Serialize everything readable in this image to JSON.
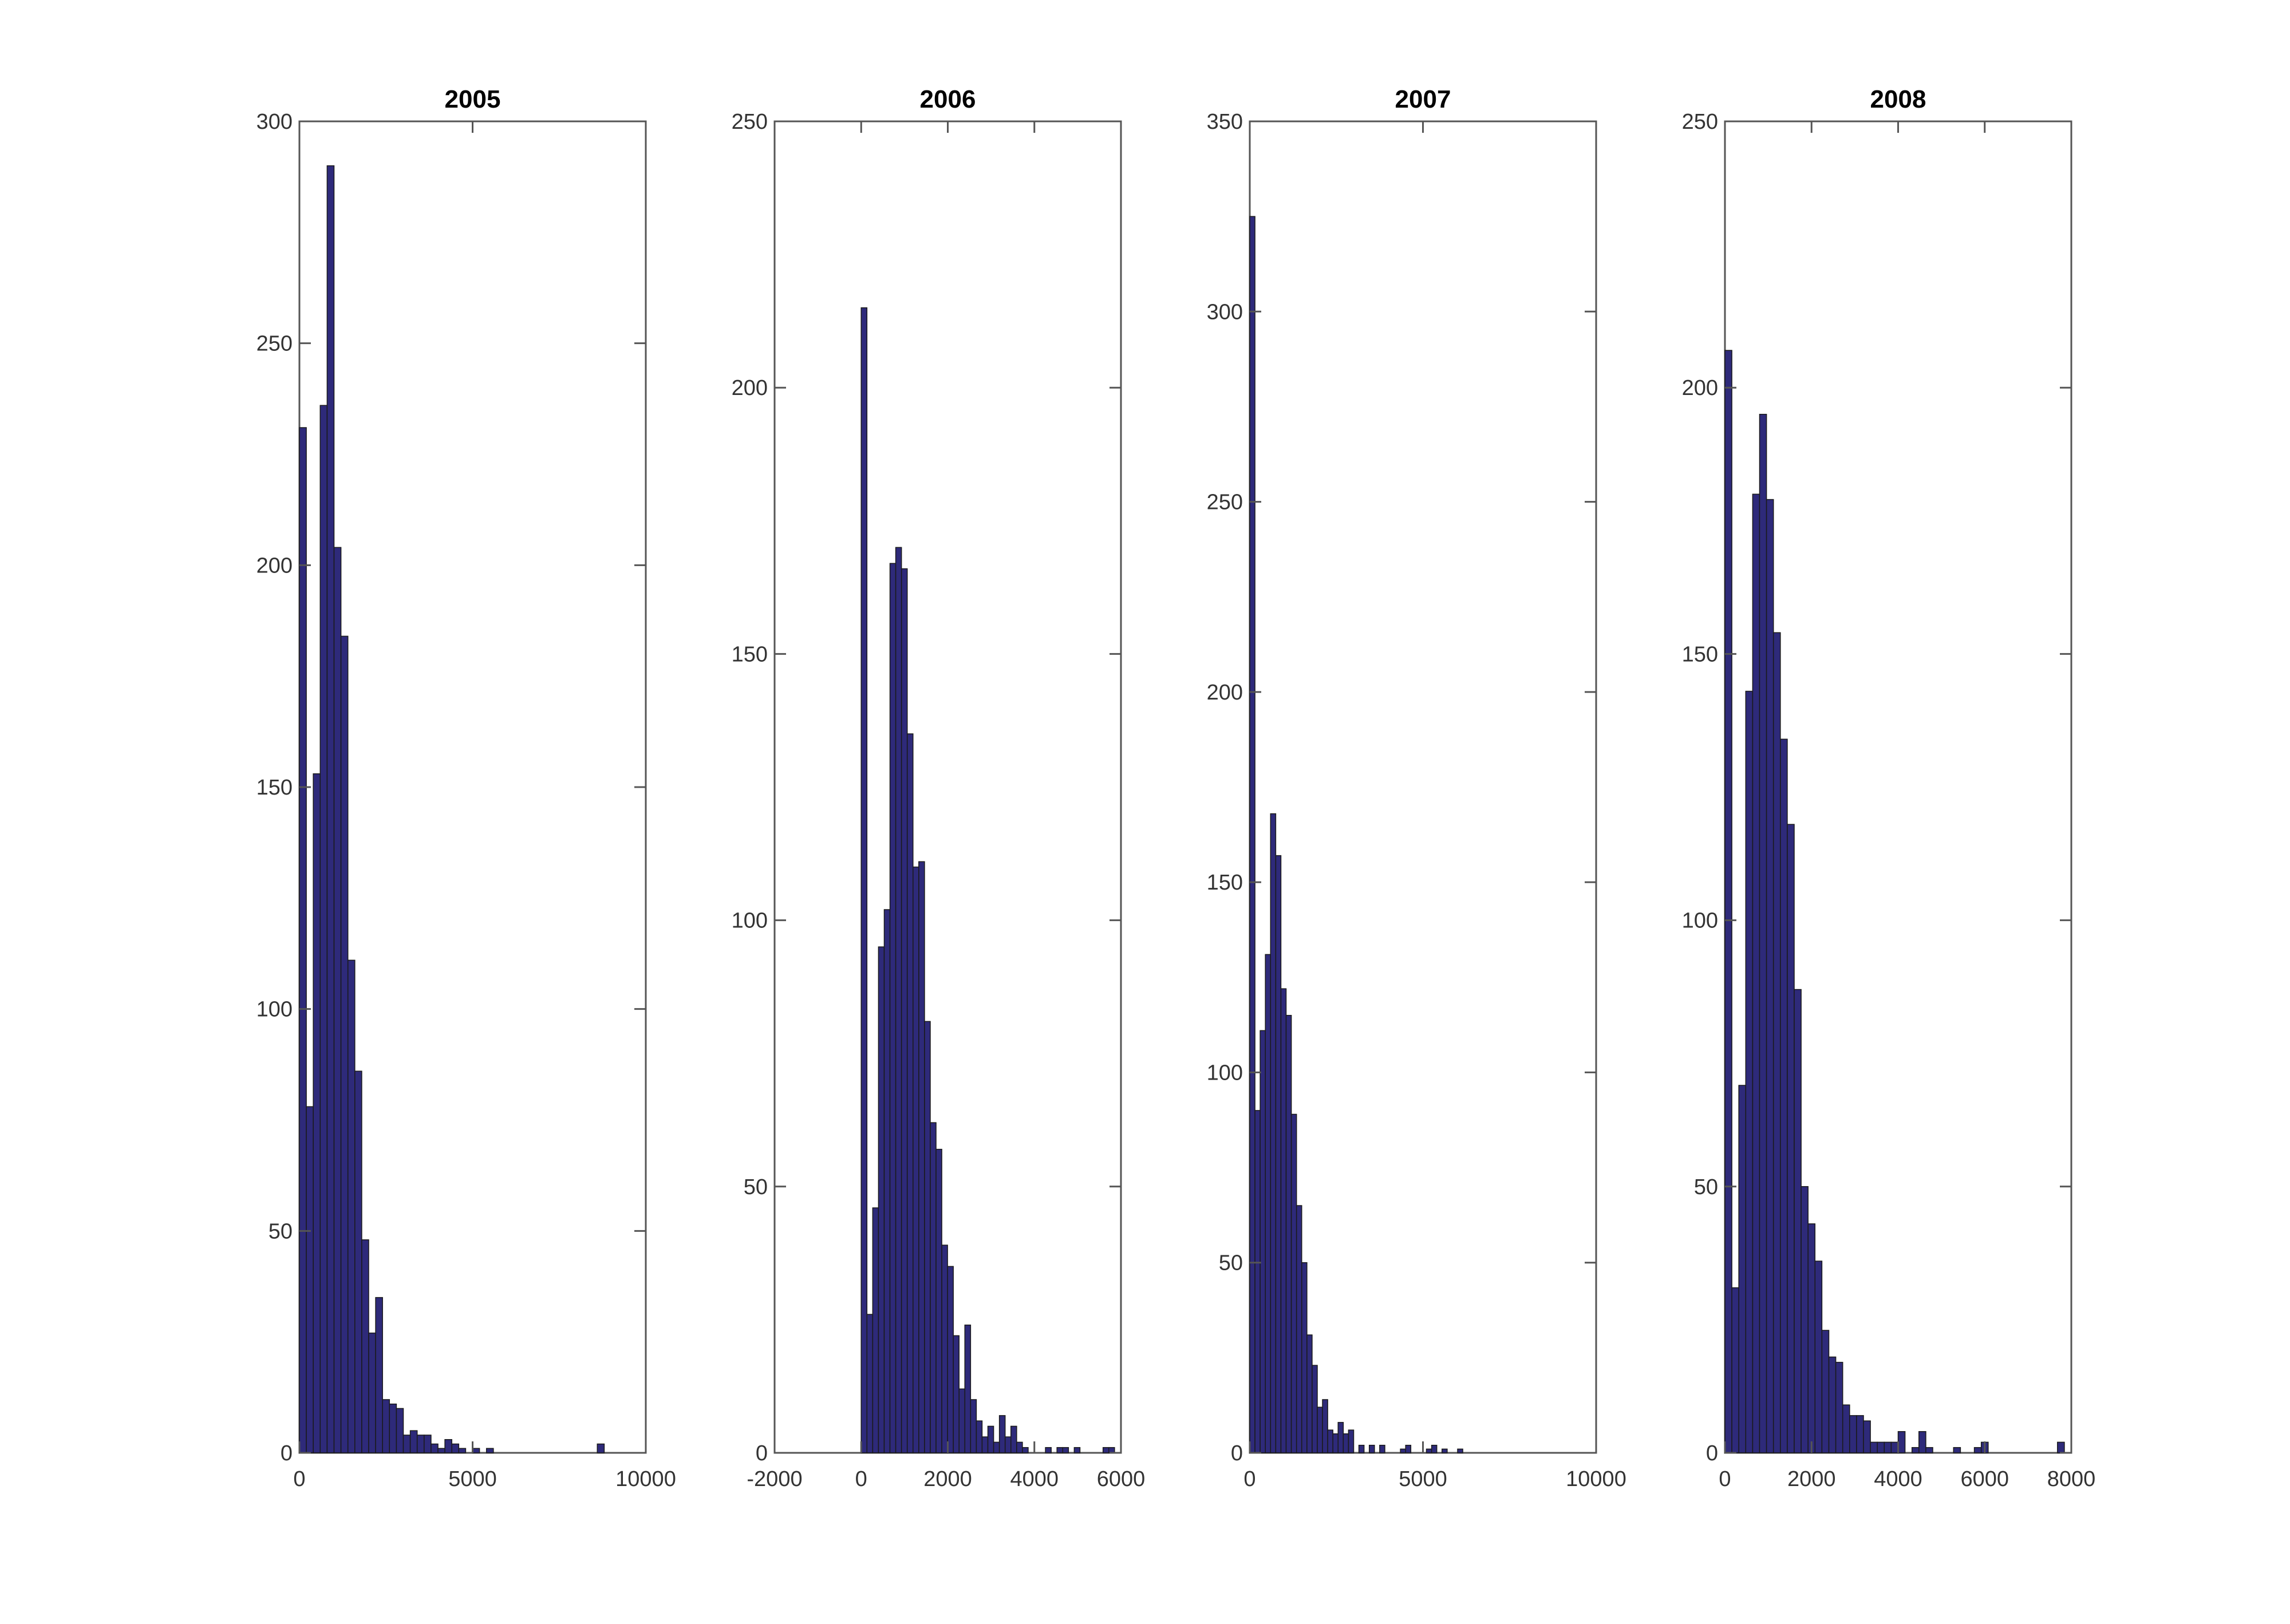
{
  "chart_data": [
    {
      "type": "bar",
      "title": "2005",
      "xlim": [
        0,
        10000
      ],
      "ylim": [
        0,
        300
      ],
      "xticks": [
        "0",
        "5000",
        "10000"
      ],
      "xtick_values": [
        0,
        5000,
        10000
      ],
      "yticks": [
        "0",
        "50",
        "100",
        "150",
        "200",
        "250",
        "300"
      ],
      "ytick_values": [
        0,
        50,
        100,
        150,
        200,
        250,
        300
      ],
      "bin_width": 200,
      "bins": [
        [
          0,
          231
        ],
        [
          200,
          78
        ],
        [
          400,
          153
        ],
        [
          600,
          236
        ],
        [
          800,
          290
        ],
        [
          1000,
          204
        ],
        [
          1200,
          184
        ],
        [
          1400,
          111
        ],
        [
          1600,
          86
        ],
        [
          1800,
          48
        ],
        [
          2000,
          27
        ],
        [
          2200,
          35
        ],
        [
          2400,
          12
        ],
        [
          2600,
          11
        ],
        [
          2800,
          10
        ],
        [
          3000,
          4
        ],
        [
          3200,
          5
        ],
        [
          3400,
          4
        ],
        [
          3600,
          4
        ],
        [
          3800,
          2
        ],
        [
          4000,
          1
        ],
        [
          4200,
          3
        ],
        [
          4400,
          2
        ],
        [
          4600,
          1
        ],
        [
          5000,
          1
        ],
        [
          5400,
          1
        ],
        [
          8600,
          2
        ]
      ],
      "bar_color": "#2e2a7a"
    },
    {
      "type": "bar",
      "title": "2006",
      "xlim": [
        -2000,
        6000
      ],
      "ylim": [
        0,
        250
      ],
      "xticks": [
        "-2000",
        "0",
        "2000",
        "4000",
        "6000"
      ],
      "xtick_values": [
        -2000,
        0,
        2000,
        4000,
        6000
      ],
      "yticks": [
        "0",
        "50",
        "100",
        "150",
        "200",
        "250"
      ],
      "ytick_values": [
        0,
        50,
        100,
        150,
        200,
        250
      ],
      "bin_width": 133,
      "bins": [
        [
          0,
          215
        ],
        [
          133,
          26
        ],
        [
          266,
          46
        ],
        [
          399,
          95
        ],
        [
          532,
          102
        ],
        [
          665,
          167
        ],
        [
          798,
          170
        ],
        [
          931,
          166
        ],
        [
          1064,
          135
        ],
        [
          1197,
          110
        ],
        [
          1330,
          111
        ],
        [
          1463,
          81
        ],
        [
          1596,
          62
        ],
        [
          1729,
          57
        ],
        [
          1862,
          39
        ],
        [
          1995,
          35
        ],
        [
          2128,
          22
        ],
        [
          2261,
          12
        ],
        [
          2394,
          24
        ],
        [
          2527,
          10
        ],
        [
          2660,
          6
        ],
        [
          2793,
          3
        ],
        [
          2926,
          5
        ],
        [
          3059,
          2
        ],
        [
          3192,
          7
        ],
        [
          3325,
          3
        ],
        [
          3458,
          5
        ],
        [
          3591,
          2
        ],
        [
          3724,
          1
        ],
        [
          4256,
          1
        ],
        [
          4522,
          1
        ],
        [
          4655,
          1
        ],
        [
          4921,
          1
        ],
        [
          5586,
          1
        ],
        [
          5719,
          1
        ]
      ],
      "bar_color": "#2e2a7a"
    },
    {
      "type": "bar",
      "title": "2007",
      "xlim": [
        0,
        10000
      ],
      "ylim": [
        0,
        350
      ],
      "xticks": [
        "0",
        "5000",
        "10000"
      ],
      "xtick_values": [
        0,
        5000,
        10000
      ],
      "yticks": [
        "0",
        "50",
        "100",
        "150",
        "200",
        "250",
        "300",
        "350"
      ],
      "ytick_values": [
        0,
        50,
        100,
        150,
        200,
        250,
        300,
        350
      ],
      "bin_width": 150,
      "bins": [
        [
          0,
          325
        ],
        [
          150,
          90
        ],
        [
          300,
          111
        ],
        [
          450,
          131
        ],
        [
          600,
          168
        ],
        [
          750,
          157
        ],
        [
          900,
          122
        ],
        [
          1050,
          115
        ],
        [
          1200,
          89
        ],
        [
          1350,
          65
        ],
        [
          1500,
          50
        ],
        [
          1650,
          31
        ],
        [
          1800,
          23
        ],
        [
          1950,
          12
        ],
        [
          2100,
          14
        ],
        [
          2250,
          6
        ],
        [
          2400,
          5
        ],
        [
          2550,
          8
        ],
        [
          2700,
          5
        ],
        [
          2850,
          6
        ],
        [
          3150,
          2
        ],
        [
          3450,
          2
        ],
        [
          3750,
          2
        ],
        [
          4350,
          1
        ],
        [
          4500,
          2
        ],
        [
          5100,
          1
        ],
        [
          5250,
          2
        ],
        [
          5550,
          1
        ],
        [
          6000,
          1
        ]
      ],
      "bar_color": "#2e2a7a"
    },
    {
      "type": "bar",
      "title": "2008",
      "xlim": [
        0,
        8000
      ],
      "ylim": [
        0,
        250
      ],
      "xticks": [
        "0",
        "2000",
        "4000",
        "6000",
        "8000"
      ],
      "xtick_values": [
        0,
        2000,
        4000,
        6000,
        8000
      ],
      "yticks": [
        "0",
        "50",
        "100",
        "150",
        "200",
        "250"
      ],
      "ytick_values": [
        0,
        50,
        100,
        150,
        200,
        250
      ],
      "bin_width": 160,
      "bins": [
        [
          0,
          207
        ],
        [
          160,
          31
        ],
        [
          320,
          69
        ],
        [
          480,
          143
        ],
        [
          640,
          180
        ],
        [
          800,
          195
        ],
        [
          960,
          179
        ],
        [
          1120,
          154
        ],
        [
          1280,
          134
        ],
        [
          1440,
          118
        ],
        [
          1600,
          87
        ],
        [
          1760,
          50
        ],
        [
          1920,
          43
        ],
        [
          2080,
          36
        ],
        [
          2240,
          23
        ],
        [
          2400,
          18
        ],
        [
          2560,
          17
        ],
        [
          2720,
          9
        ],
        [
          2880,
          7
        ],
        [
          3040,
          7
        ],
        [
          3200,
          6
        ],
        [
          3360,
          2
        ],
        [
          3520,
          2
        ],
        [
          3680,
          2
        ],
        [
          3840,
          2
        ],
        [
          4000,
          4
        ],
        [
          4320,
          1
        ],
        [
          4480,
          4
        ],
        [
          4640,
          1
        ],
        [
          5280,
          1
        ],
        [
          5760,
          1
        ],
        [
          5920,
          2
        ],
        [
          7680,
          2
        ]
      ],
      "bar_color": "#2e2a7a"
    }
  ]
}
